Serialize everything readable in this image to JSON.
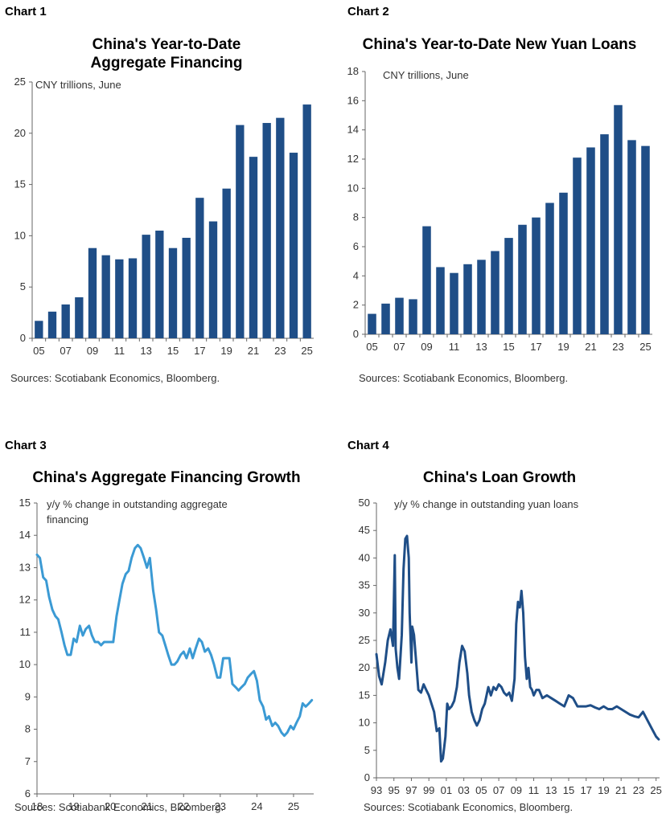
{
  "charts": [
    {
      "label": "Chart 1",
      "title_lines": [
        "China's Year-to-Date",
        "Aggregate Financing"
      ],
      "subtitle": "CNY trillions, June",
      "source": "Sources: Scotiabank Economics, Bloomberg.",
      "color": "#1f4e87"
    },
    {
      "label": "Chart 2",
      "title_lines": [
        "China's Year-to-Date New Yuan Loans"
      ],
      "subtitle": "CNY trillions, June",
      "source": "Sources: Scotiabank Economics, Bloomberg.",
      "color": "#1f4e87"
    },
    {
      "label": "Chart 3",
      "title_lines": [
        "China's Aggregate Financing Growth"
      ],
      "subtitle_lines": [
        "y/y % change in outstanding aggregate",
        "financing"
      ],
      "source": "Sources: Scotiabank Economics, Bloomberg.",
      "color": "#3b9ad4"
    },
    {
      "label": "Chart 4",
      "title_lines": [
        "China's  Loan Growth"
      ],
      "subtitle_lines": [
        "y/y % change in outstanding yuan loans"
      ],
      "source": "Sources: Scotiabank Economics, Bloomberg.",
      "color": "#1f4e87"
    }
  ],
  "chart_data": [
    {
      "type": "bar",
      "title": "China's Year-to-Date Aggregate Financing",
      "ylabel": "CNY trillions, June",
      "ylim": [
        0,
        25
      ],
      "yticks": [
        0,
        5,
        10,
        15,
        20,
        25
      ],
      "categories": [
        "05",
        "06",
        "07",
        "08",
        "09",
        "10",
        "11",
        "12",
        "13",
        "14",
        "15",
        "16",
        "17",
        "18",
        "19",
        "20",
        "21",
        "22",
        "23",
        "24",
        "25"
      ],
      "xtick_labels": [
        "05",
        "07",
        "09",
        "11",
        "13",
        "15",
        "17",
        "19",
        "21",
        "23",
        "25"
      ],
      "values": [
        1.7,
        2.6,
        3.3,
        4.0,
        8.8,
        8.1,
        7.7,
        7.8,
        10.1,
        10.5,
        8.8,
        9.8,
        13.7,
        11.4,
        14.6,
        20.8,
        17.7,
        21.0,
        21.5,
        18.1,
        22.8
      ]
    },
    {
      "type": "bar",
      "title": "China's Year-to-Date New Yuan Loans",
      "ylabel": "CNY trillions, June",
      "ylim": [
        0,
        18
      ],
      "yticks": [
        0,
        2,
        4,
        6,
        8,
        10,
        12,
        14,
        16,
        18
      ],
      "categories": [
        "05",
        "06",
        "07",
        "08",
        "09",
        "10",
        "11",
        "12",
        "13",
        "14",
        "15",
        "16",
        "17",
        "18",
        "19",
        "20",
        "21",
        "22",
        "23",
        "24",
        "25"
      ],
      "xtick_labels": [
        "05",
        "07",
        "09",
        "11",
        "13",
        "15",
        "17",
        "19",
        "21",
        "23",
        "25"
      ],
      "values": [
        1.4,
        2.1,
        2.5,
        2.4,
        7.4,
        4.6,
        4.2,
        4.8,
        5.1,
        5.7,
        6.6,
        7.5,
        8.0,
        9.0,
        9.7,
        12.1,
        12.8,
        13.7,
        15.7,
        13.3,
        12.9
      ]
    },
    {
      "type": "line",
      "title": "China's Aggregate Financing Growth",
      "ylabel": "y/y % change in outstanding aggregate financing",
      "ylim": [
        6,
        15
      ],
      "yticks": [
        6,
        7,
        8,
        9,
        10,
        11,
        12,
        13,
        14,
        15
      ],
      "xlim": [
        2018.0,
        2025.55
      ],
      "xticks": [
        2018,
        2019,
        2020,
        2021,
        2022,
        2023,
        2024,
        2025
      ],
      "xtick_labels": [
        "18",
        "19",
        "20",
        "21",
        "22",
        "23",
        "24",
        "25"
      ],
      "x": [
        2018.0,
        2018.08,
        2018.17,
        2018.25,
        2018.33,
        2018.42,
        2018.5,
        2018.58,
        2018.67,
        2018.75,
        2018.83,
        2018.92,
        2019.0,
        2019.08,
        2019.17,
        2019.25,
        2019.33,
        2019.42,
        2019.5,
        2019.58,
        2019.67,
        2019.75,
        2019.83,
        2019.92,
        2020.0,
        2020.08,
        2020.17,
        2020.25,
        2020.33,
        2020.42,
        2020.5,
        2020.58,
        2020.67,
        2020.75,
        2020.83,
        2020.92,
        2021.0,
        2021.08,
        2021.17,
        2021.25,
        2021.33,
        2021.42,
        2021.5,
        2021.58,
        2021.67,
        2021.75,
        2021.83,
        2021.92,
        2022.0,
        2022.08,
        2022.17,
        2022.25,
        2022.33,
        2022.42,
        2022.5,
        2022.58,
        2022.67,
        2022.75,
        2022.83,
        2022.92,
        2023.0,
        2023.08,
        2023.17,
        2023.25,
        2023.33,
        2023.42,
        2023.5,
        2023.58,
        2023.67,
        2023.75,
        2023.83,
        2023.92,
        2024.0,
        2024.08,
        2024.17,
        2024.25,
        2024.33,
        2024.42,
        2024.5,
        2024.58,
        2024.67,
        2024.75,
        2024.83,
        2024.92,
        2025.0,
        2025.08,
        2025.17,
        2025.25,
        2025.33,
        2025.42,
        2025.5
      ],
      "values": [
        13.4,
        13.3,
        12.7,
        12.6,
        12.1,
        11.7,
        11.5,
        11.4,
        11.0,
        10.6,
        10.3,
        10.3,
        10.8,
        10.7,
        11.2,
        10.9,
        11.1,
        11.2,
        10.9,
        10.7,
        10.7,
        10.6,
        10.7,
        10.7,
        10.7,
        10.7,
        11.5,
        12.0,
        12.5,
        12.8,
        12.9,
        13.3,
        13.6,
        13.7,
        13.6,
        13.3,
        13.0,
        13.3,
        12.3,
        11.7,
        11.0,
        10.9,
        10.6,
        10.3,
        10.0,
        10.0,
        10.1,
        10.3,
        10.4,
        10.2,
        10.5,
        10.2,
        10.5,
        10.8,
        10.7,
        10.4,
        10.5,
        10.3,
        10.0,
        9.6,
        9.6,
        10.2,
        10.2,
        10.2,
        9.4,
        9.3,
        9.2,
        9.3,
        9.4,
        9.6,
        9.7,
        9.8,
        9.5,
        8.9,
        8.7,
        8.3,
        8.4,
        8.1,
        8.2,
        8.1,
        7.9,
        7.8,
        7.9,
        8.1,
        8.0,
        8.2,
        8.4,
        8.8,
        8.7,
        8.8,
        8.9
      ]
    },
    {
      "type": "line",
      "title": "China's  Loan Growth",
      "ylabel": "y/y % change in outstanding yuan loans",
      "ylim": [
        0,
        50
      ],
      "yticks": [
        0,
        5,
        10,
        15,
        20,
        25,
        30,
        35,
        40,
        45,
        50
      ],
      "xlim": [
        1993.0,
        2025.4
      ],
      "xticks": [
        1993,
        1995,
        1997,
        1999,
        2001,
        2003,
        2005,
        2007,
        2009,
        2011,
        2013,
        2015,
        2017,
        2019,
        2021,
        2023,
        2025
      ],
      "xtick_labels": [
        "93",
        "95",
        "97",
        "99",
        "01",
        "03",
        "05",
        "07",
        "09",
        "11",
        "13",
        "15",
        "17",
        "19",
        "21",
        "23",
        "25"
      ],
      "x": [
        1993.0,
        1993.3,
        1993.6,
        1994.0,
        1994.3,
        1994.6,
        1994.9,
        1995.1,
        1995.2,
        1995.4,
        1995.6,
        1995.9,
        1996.1,
        1996.3,
        1996.5,
        1996.7,
        1996.8,
        1997.0,
        1997.1,
        1997.3,
        1997.5,
        1997.8,
        1998.1,
        1998.4,
        1998.7,
        1999.0,
        1999.3,
        1999.6,
        1999.9,
        2000.2,
        2000.4,
        2000.6,
        2000.9,
        2001.1,
        2001.3,
        2001.6,
        2001.9,
        2002.2,
        2002.5,
        2002.8,
        2003.1,
        2003.4,
        2003.6,
        2003.9,
        2004.2,
        2004.5,
        2004.8,
        2005.1,
        2005.4,
        2005.8,
        2006.1,
        2006.4,
        2006.7,
        2007.0,
        2007.3,
        2007.6,
        2007.9,
        2008.2,
        2008.5,
        2008.8,
        2009.0,
        2009.2,
        2009.4,
        2009.6,
        2009.8,
        2010.0,
        2010.2,
        2010.4,
        2010.6,
        2010.8,
        2011.0,
        2011.3,
        2011.6,
        2012.0,
        2012.5,
        2013.0,
        2013.5,
        2014.0,
        2014.5,
        2015.0,
        2015.5,
        2016.0,
        2016.5,
        2017.0,
        2017.5,
        2018.0,
        2018.5,
        2019.0,
        2019.5,
        2020.0,
        2020.5,
        2021.0,
        2021.5,
        2022.0,
        2022.5,
        2023.0,
        2023.5,
        2024.0,
        2024.5,
        2025.0,
        2025.3
      ],
      "values": [
        22.5,
        18.5,
        17.0,
        21.0,
        25.0,
        27.0,
        24.0,
        40.5,
        23.5,
        20.0,
        18.0,
        26.0,
        38.0,
        43.5,
        44.0,
        40.0,
        30.0,
        21.0,
        27.5,
        26.0,
        22.0,
        16.0,
        15.5,
        17.0,
        16.0,
        15.0,
        13.5,
        12.0,
        8.5,
        9.0,
        3.0,
        3.5,
        7.5,
        13.5,
        12.5,
        13.0,
        14.0,
        16.5,
        21.0,
        24.0,
        23.0,
        19.0,
        15.0,
        12.0,
        10.5,
        9.5,
        10.5,
        12.5,
        13.5,
        16.5,
        15.0,
        16.5,
        16.0,
        17.0,
        16.5,
        15.5,
        15.0,
        15.5,
        14.0,
        18.0,
        28.0,
        32.0,
        31.0,
        34.0,
        30.0,
        22.0,
        18.0,
        20.0,
        16.5,
        16.0,
        15.0,
        16.0,
        16.0,
        14.5,
        15.0,
        14.5,
        14.0,
        13.5,
        13.0,
        15.0,
        14.5,
        13.0,
        13.0,
        13.0,
        13.2,
        12.8,
        12.5,
        13.0,
        12.5,
        12.5,
        13.0,
        12.5,
        12.0,
        11.5,
        11.2,
        11.0,
        12.0,
        10.5,
        9.0,
        7.5,
        7.0
      ]
    }
  ]
}
